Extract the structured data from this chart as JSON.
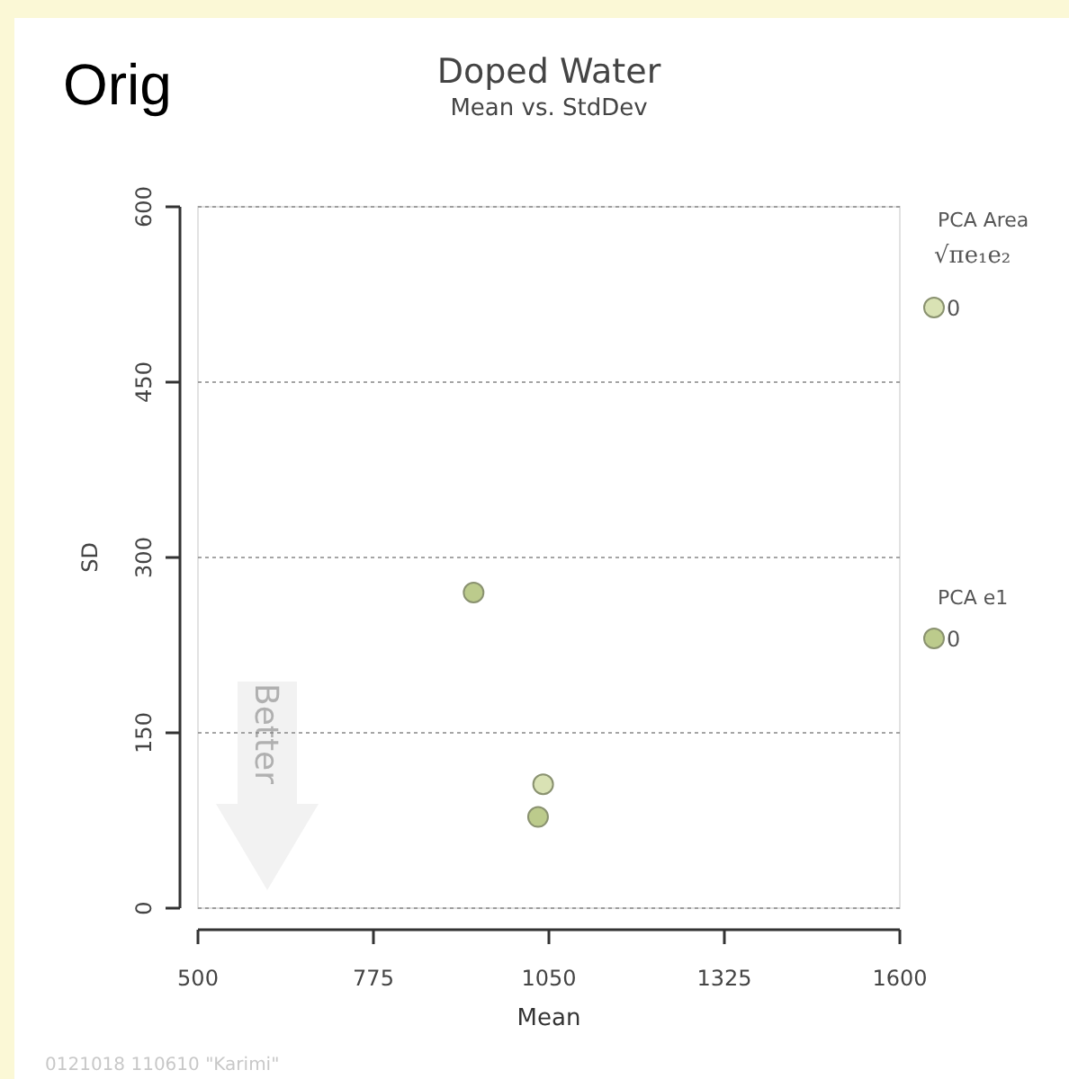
{
  "chart_data": {
    "type": "scatter",
    "title": "Doped Water",
    "subtitle": "Mean vs. StdDev",
    "xlabel": "Mean",
    "ylabel": "SD",
    "xlim": [
      500,
      1600
    ],
    "xticks": [
      500,
      775,
      1050,
      1325,
      1600
    ],
    "ylim": [
      0,
      600
    ],
    "yticks": [
      0,
      150,
      300,
      450,
      600
    ],
    "grid": "y",
    "legend": "right",
    "marker": "circle",
    "series": [
      {
        "name": "0",
        "color": "#d9e2b4",
        "x": [
          1041
        ],
        "values": [
          106
        ]
      },
      {
        "name": "0",
        "color": "#bccb8c",
        "x": [
          932,
          1033
        ],
        "values": [
          270,
          78
        ]
      }
    ],
    "annotations": [
      "Orig",
      "Better",
      "0121018 110610 \"Karimi\"",
      "PCA Area",
      "√πe₁e₂",
      "PCA e1"
    ]
  }
}
